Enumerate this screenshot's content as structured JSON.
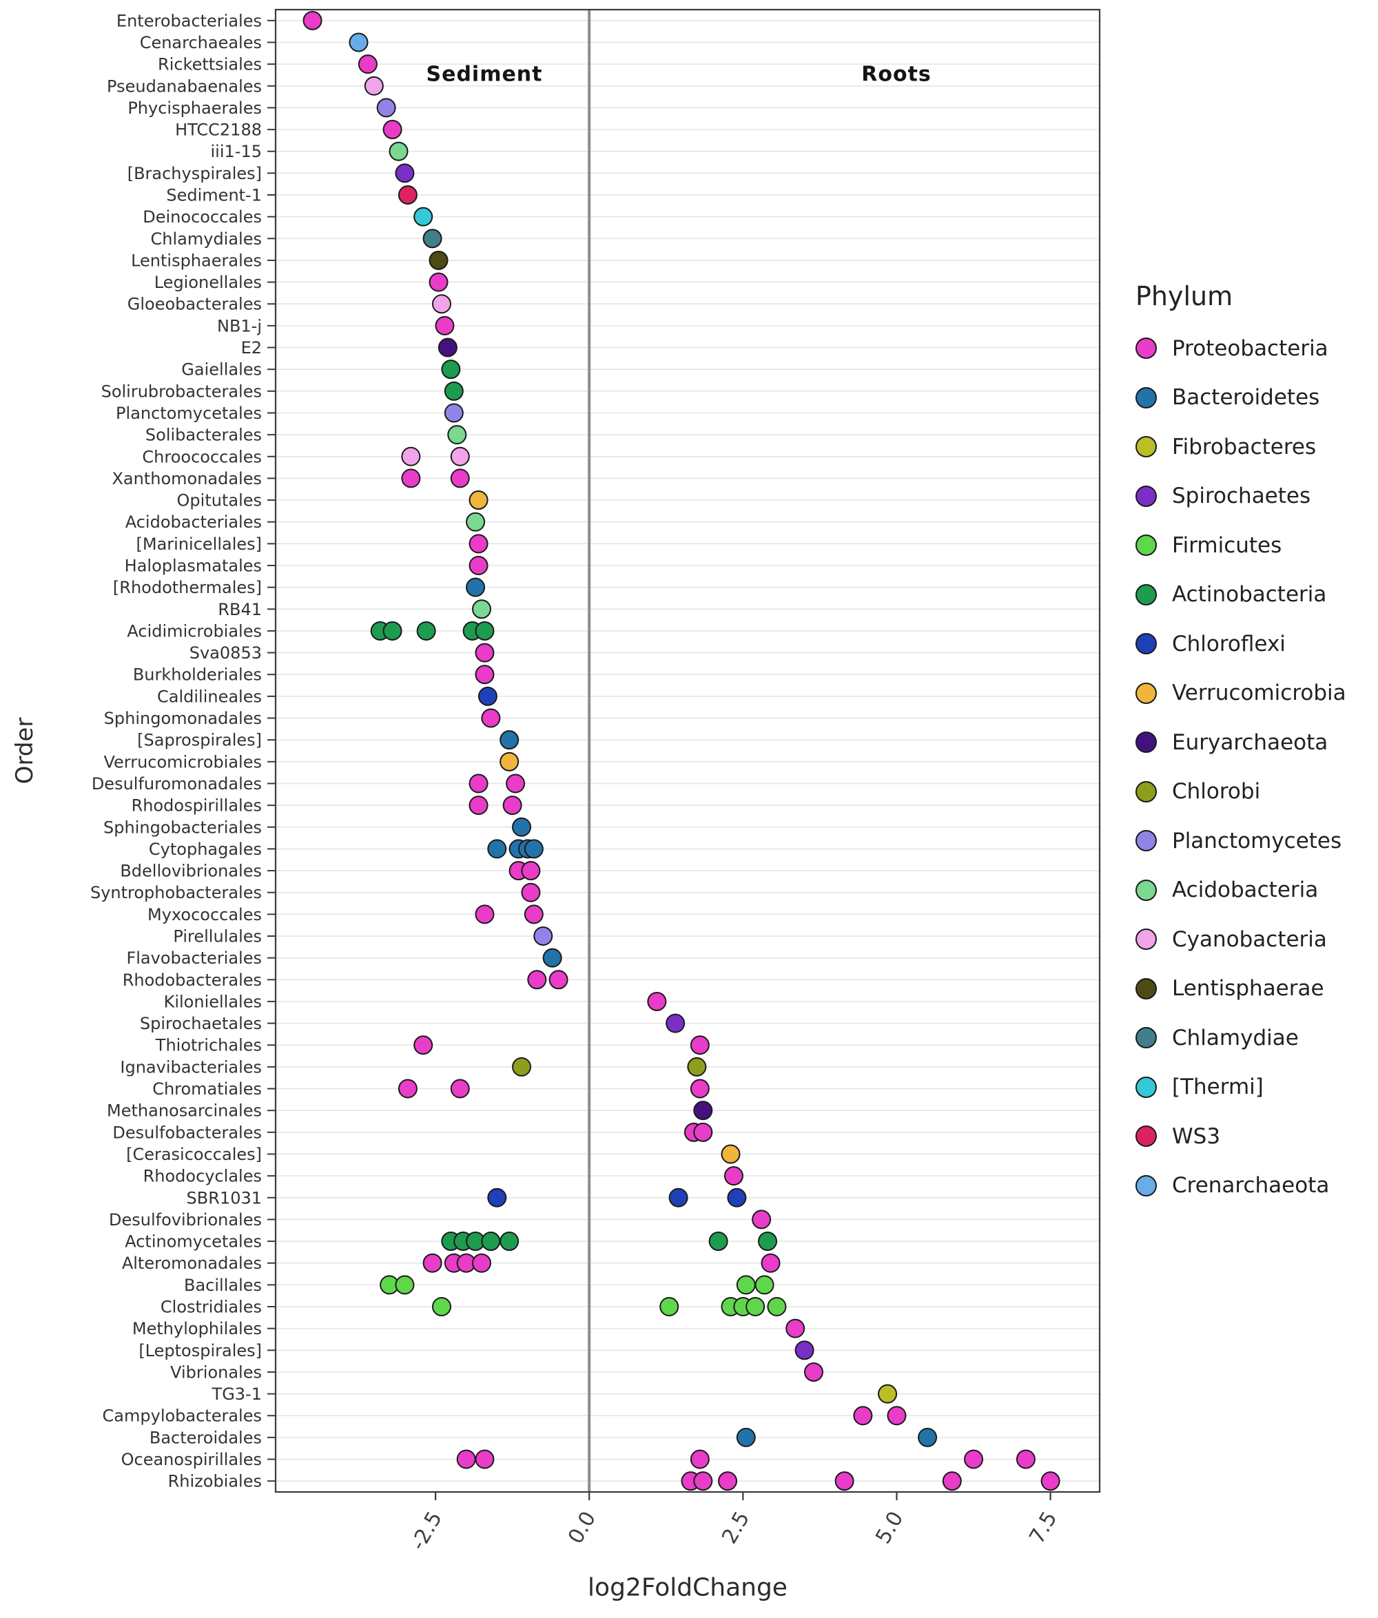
{
  "legend": {
    "title": "Phylum",
    "entries": [
      "Proteobacteria",
      "Bacteroidetes",
      "Fibrobacteres",
      "Spirochaetes",
      "Firmicutes",
      "Actinobacteria",
      "Chloroflexi",
      "Verrucomicrobia",
      "Euryarchaeota",
      "Chlorobi",
      "Planctomycetes",
      "Acidobacteria",
      "Cyanobacteria",
      "Lentisphaerae",
      "Chlamydiae",
      "[Thermi]",
      "WS3",
      "Crenarchaeota"
    ]
  },
  "chart_data": {
    "type": "scatter",
    "xlabel": "log2FoldChange",
    "ylabel": "Order",
    "xlim": [
      -5.1,
      8.3
    ],
    "x_ticks": [
      -2.5,
      0.0,
      2.5,
      5.0,
      7.5
    ],
    "x_tick_labels": [
      "-2.5",
      "0.0",
      "2.5",
      "5.0",
      "7.5"
    ],
    "zero_line_x": 0,
    "grid": "horizontal-only",
    "legend_position": "right",
    "region_labels": [
      {
        "label": "Sediment",
        "x": -1.7
      },
      {
        "label": "Roots",
        "x": 5.0
      }
    ],
    "palette": {
      "Proteobacteria": "#E93CC8",
      "Bacteroidetes": "#2273A9",
      "Fibrobacteres": "#B9BF25",
      "Spirochaetes": "#7A30C7",
      "Firmicutes": "#5FD74B",
      "Actinobacteria": "#1D9C50",
      "Chloroflexi": "#2040B8",
      "Verrucomicrobia": "#F0B63C",
      "Euryarchaeota": "#44127E",
      "Chlorobi": "#8F9D1D",
      "Planctomycetes": "#9184E8",
      "Acidobacteria": "#7AD890",
      "Cyanobacteria": "#F1A4E9",
      "Lentisphaerae": "#4D4A16",
      "Chlamydiae": "#41808A",
      "[Thermi]": "#35C9D7",
      "WS3": "#DC2360",
      "Crenarchaeota": "#67ADE9"
    },
    "rows": [
      {
        "order": "Enterobacteriales",
        "phylum": "Proteobacteria",
        "values": [
          -4.5
        ]
      },
      {
        "order": "Cenarchaeales",
        "phylum": "Crenarchaeota",
        "values": [
          -3.75
        ]
      },
      {
        "order": "Rickettsiales",
        "phylum": "Proteobacteria",
        "values": [
          -3.6
        ]
      },
      {
        "order": "Pseudanabaenales",
        "phylum": "Cyanobacteria",
        "values": [
          -3.5
        ]
      },
      {
        "order": "Phycisphaerales",
        "phylum": "Planctomycetes",
        "values": [
          -3.3
        ]
      },
      {
        "order": "HTCC2188",
        "phylum": "Proteobacteria",
        "values": [
          -3.2
        ]
      },
      {
        "order": "iii1-15",
        "phylum": "Acidobacteria",
        "values": [
          -3.1
        ]
      },
      {
        "order": "[Brachyspirales]",
        "phylum": "Spirochaetes",
        "values": [
          -3.0
        ]
      },
      {
        "order": "Sediment-1",
        "phylum": "WS3",
        "values": [
          -2.95
        ]
      },
      {
        "order": "Deinococcales",
        "phylum": "[Thermi]",
        "values": [
          -2.7
        ]
      },
      {
        "order": "Chlamydiales",
        "phylum": "Chlamydiae",
        "values": [
          -2.55
        ]
      },
      {
        "order": "Lentisphaerales",
        "phylum": "Lentisphaerae",
        "values": [
          -2.45
        ]
      },
      {
        "order": "Legionellales",
        "phylum": "Proteobacteria",
        "values": [
          -2.45
        ]
      },
      {
        "order": "Gloeobacterales",
        "phylum": "Cyanobacteria",
        "values": [
          -2.4
        ]
      },
      {
        "order": "NB1-j",
        "phylum": "Proteobacteria",
        "values": [
          -2.35
        ]
      },
      {
        "order": "E2",
        "phylum": "Euryarchaeota",
        "values": [
          -2.3
        ]
      },
      {
        "order": "Gaiellales",
        "phylum": "Actinobacteria",
        "values": [
          -2.25
        ]
      },
      {
        "order": "Solirubrobacterales",
        "phylum": "Actinobacteria",
        "values": [
          -2.2
        ]
      },
      {
        "order": "Planctomycetales",
        "phylum": "Planctomycetes",
        "values": [
          -2.2
        ]
      },
      {
        "order": "Solibacterales",
        "phylum": "Acidobacteria",
        "values": [
          -2.15
        ]
      },
      {
        "order": "Chroococcales",
        "phylum": "Cyanobacteria",
        "values": [
          -2.9,
          -2.1
        ]
      },
      {
        "order": "Xanthomonadales",
        "phylum": "Proteobacteria",
        "values": [
          -2.9,
          -2.1
        ]
      },
      {
        "order": "Opitutales",
        "phylum": "Verrucomicrobia",
        "values": [
          -1.8
        ]
      },
      {
        "order": "Acidobacteriales",
        "phylum": "Acidobacteria",
        "values": [
          -1.85
        ]
      },
      {
        "order": "[Marinicellales]",
        "phylum": "Proteobacteria",
        "values": [
          -1.8
        ]
      },
      {
        "order": "Haloplasmatales",
        "phylum": "Proteobacteria",
        "values": [
          -1.8
        ]
      },
      {
        "order": "[Rhodothermales]",
        "phylum": "Bacteroidetes",
        "values": [
          -1.85
        ]
      },
      {
        "order": "RB41",
        "phylum": "Acidobacteria",
        "values": [
          -1.75
        ]
      },
      {
        "order": "Acidimicrobiales",
        "phylum": "Actinobacteria",
        "values": [
          -3.4,
          -3.2,
          -2.65,
          -1.9,
          -1.7
        ]
      },
      {
        "order": "Sva0853",
        "phylum": "Proteobacteria",
        "values": [
          -1.7
        ]
      },
      {
        "order": "Burkholderiales",
        "phylum": "Proteobacteria",
        "values": [
          -1.7
        ]
      },
      {
        "order": "Caldilineales",
        "phylum": "Chloroflexi",
        "values": [
          -1.65
        ]
      },
      {
        "order": "Sphingomonadales",
        "phylum": "Proteobacteria",
        "values": [
          -1.6
        ]
      },
      {
        "order": "[Saprospirales]",
        "phylum": "Bacteroidetes",
        "values": [
          -1.3
        ]
      },
      {
        "order": "Verrucomicrobiales",
        "phylum": "Verrucomicrobia",
        "values": [
          -1.3
        ]
      },
      {
        "order": "Desulfuromonadales",
        "phylum": "Proteobacteria",
        "values": [
          -1.8,
          -1.2
        ]
      },
      {
        "order": "Rhodospirillales",
        "phylum": "Proteobacteria",
        "values": [
          -1.8,
          -1.25
        ]
      },
      {
        "order": "Sphingobacteriales",
        "phylum": "Bacteroidetes",
        "values": [
          -1.1
        ]
      },
      {
        "order": "Cytophagales",
        "phylum": "Bacteroidetes",
        "values": [
          -1.5,
          -1.15,
          -1.0,
          -0.9
        ]
      },
      {
        "order": "Bdellovibrionales",
        "phylum": "Proteobacteria",
        "values": [
          -1.15,
          -0.95
        ]
      },
      {
        "order": "Syntrophobacterales",
        "phylum": "Proteobacteria",
        "values": [
          -0.95
        ]
      },
      {
        "order": "Myxococcales",
        "phylum": "Proteobacteria",
        "values": [
          -1.7,
          -0.9
        ]
      },
      {
        "order": "Pirellulales",
        "phylum": "Planctomycetes",
        "values": [
          -0.75
        ]
      },
      {
        "order": "Flavobacteriales",
        "phylum": "Bacteroidetes",
        "values": [
          -0.6
        ]
      },
      {
        "order": "Rhodobacterales",
        "phylum": "Proteobacteria",
        "values": [
          -0.85,
          -0.5
        ]
      },
      {
        "order": "Kiloniellales",
        "phylum": "Proteobacteria",
        "values": [
          1.1
        ]
      },
      {
        "order": "Spirochaetales",
        "phylum": "Spirochaetes",
        "values": [
          1.4
        ]
      },
      {
        "order": "Thiotrichales",
        "phylum": "Proteobacteria",
        "values": [
          -2.7,
          1.8
        ]
      },
      {
        "order": "Ignavibacteriales",
        "phylum": "Chlorobi",
        "values": [
          -1.1,
          1.75
        ]
      },
      {
        "order": "Chromatiales",
        "phylum": "Proteobacteria",
        "values": [
          -2.95,
          -2.1,
          1.8
        ]
      },
      {
        "order": "Methanosarcinales",
        "phylum": "Euryarchaeota",
        "values": [
          1.85
        ]
      },
      {
        "order": "Desulfobacterales",
        "phylum": "Proteobacteria",
        "values": [
          1.7,
          1.85
        ]
      },
      {
        "order": "[Cerasicoccales]",
        "phylum": "Verrucomicrobia",
        "values": [
          2.3
        ]
      },
      {
        "order": "Rhodocyclales",
        "phylum": "Proteobacteria",
        "values": [
          2.35
        ]
      },
      {
        "order": "SBR1031",
        "phylum": "Chloroflexi",
        "values": [
          -1.5,
          1.45,
          2.4
        ]
      },
      {
        "order": "Desulfovibrionales",
        "phylum": "Proteobacteria",
        "values": [
          2.8
        ]
      },
      {
        "order": "Actinomycetales",
        "phylum": "Actinobacteria",
        "values": [
          -2.25,
          -2.05,
          -1.85,
          -1.6,
          -1.3,
          2.1,
          2.9
        ]
      },
      {
        "order": "Alteromonadales",
        "phylum": "Proteobacteria",
        "values": [
          -2.55,
          -2.2,
          -2.0,
          -1.75,
          2.95
        ]
      },
      {
        "order": "Bacillales",
        "phylum": "Firmicutes",
        "values": [
          -3.25,
          -3.0,
          2.55,
          2.85
        ]
      },
      {
        "order": "Clostridiales",
        "phylum": "Firmicutes",
        "values": [
          -2.4,
          1.3,
          2.3,
          2.5,
          2.7,
          3.05
        ]
      },
      {
        "order": "Methylophilales",
        "phylum": "Proteobacteria",
        "values": [
          3.35
        ]
      },
      {
        "order": "[Leptospirales]",
        "phylum": "Spirochaetes",
        "values": [
          3.5
        ]
      },
      {
        "order": "Vibrionales",
        "phylum": "Proteobacteria",
        "values": [
          3.65
        ]
      },
      {
        "order": "TG3-1",
        "phylum": "Fibrobacteres",
        "values": [
          4.85
        ]
      },
      {
        "order": "Campylobacterales",
        "phylum": "Proteobacteria",
        "values": [
          4.45,
          5.0
        ]
      },
      {
        "order": "Bacteroidales",
        "phylum": "Bacteroidetes",
        "values": [
          2.55,
          5.5
        ]
      },
      {
        "order": "Oceanospirillales",
        "phylum": "Proteobacteria",
        "values": [
          -2.0,
          -1.7,
          1.8,
          6.25,
          7.1
        ]
      },
      {
        "order": "Rhizobiales",
        "phylum": "Proteobacteria",
        "values": [
          1.65,
          1.85,
          2.25,
          4.15,
          5.9,
          7.5
        ]
      }
    ]
  }
}
